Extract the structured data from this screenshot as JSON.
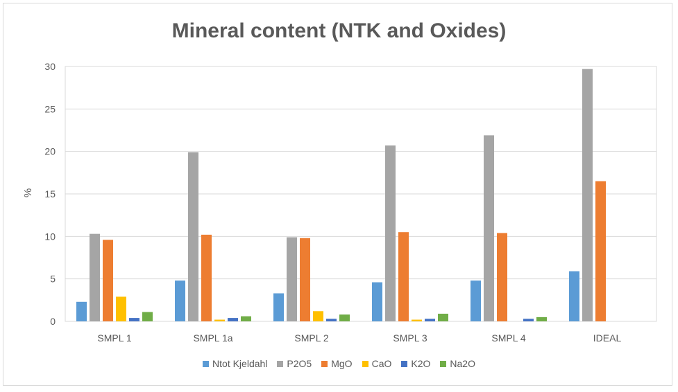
{
  "chart_data": {
    "type": "bar",
    "title": "Mineral content (NTK and Oxides)",
    "xlabel": "",
    "ylabel": "%",
    "ylim": [
      0,
      30
    ],
    "yticks": [
      0,
      5,
      10,
      15,
      20,
      25,
      30
    ],
    "grid": true,
    "legend": "bottom",
    "categories": [
      "SMPL 1",
      "SMPL 1a",
      "SMPL 2",
      "SMPL 3",
      "SMPL 4",
      "IDEAL"
    ],
    "series": [
      {
        "name": "Ntot Kjeldahl",
        "color": "#5b9bd5",
        "values": [
          2.3,
          4.8,
          3.3,
          4.6,
          4.8,
          5.9
        ]
      },
      {
        "name": "P2O5",
        "color": "#a5a5a5",
        "values": [
          10.3,
          19.9,
          9.9,
          20.7,
          21.9,
          29.7
        ]
      },
      {
        "name": "MgO",
        "color": "#ed7d31",
        "values": [
          9.6,
          10.2,
          9.8,
          10.5,
          10.4,
          16.5
        ]
      },
      {
        "name": "CaO",
        "color": "#ffc000",
        "values": [
          2.9,
          0.2,
          1.2,
          0.2,
          0,
          0
        ]
      },
      {
        "name": "K2O",
        "color": "#4472c4",
        "values": [
          0.4,
          0.4,
          0.3,
          0.3,
          0.3,
          0
        ]
      },
      {
        "name": "Na2O",
        "color": "#70ad47",
        "values": [
          1.1,
          0.6,
          0.8,
          0.9,
          0.5,
          0
        ]
      }
    ]
  }
}
